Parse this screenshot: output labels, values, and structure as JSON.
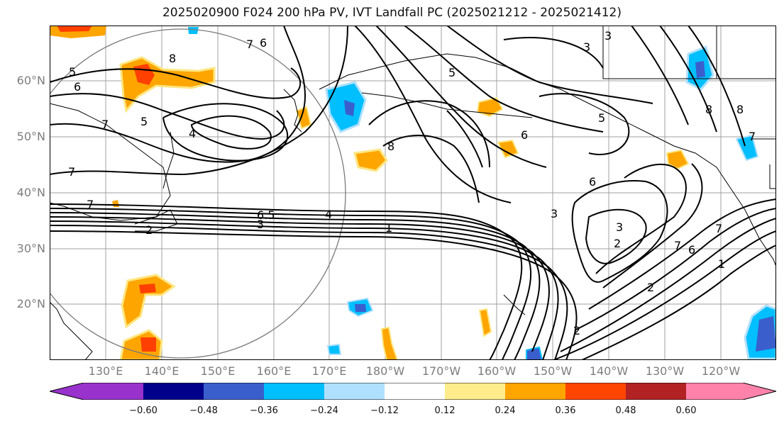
{
  "title": "2025020900 F024 200 hPa PV, IVT Landfall PC (2025021212 - 2025021412)",
  "map": {
    "lat_labels": [
      "60°N",
      "50°N",
      "40°N",
      "30°N",
      "20°N"
    ],
    "lon_labels": [
      "130°E",
      "140°E",
      "150°E",
      "160°E",
      "170°E",
      "180°W",
      "170°W",
      "160°W",
      "150°W",
      "140°W",
      "130°W",
      "120°W"
    ],
    "contour_labels": [
      "5",
      "6",
      "7",
      "8",
      "6",
      "7",
      "5",
      "4",
      "7",
      "7",
      "8",
      "6.5",
      "4",
      "3",
      "2",
      "1",
      "3",
      "5",
      "8",
      "3",
      "6",
      "5",
      "3",
      "6",
      "3",
      "2",
      "2",
      "7",
      "6",
      "7",
      "1",
      "2",
      "8",
      "7"
    ],
    "fill_colors": {
      "orange": "#ffa500",
      "light_orange": "#ffe680",
      "red_orange": "#ff4000",
      "cyan": "#00bfff",
      "light_cyan": "#b0e0ff",
      "blue": "#3a5fcd"
    }
  },
  "colorbar": {
    "tick_labels": [
      "−0.60",
      "−0.48",
      "−0.36",
      "−0.24",
      "−0.12",
      "0.12",
      "0.24",
      "0.36",
      "0.48",
      "0.60"
    ],
    "colors": [
      "#9932cc",
      "#00008b",
      "#3a5fcd",
      "#00bfff",
      "#b0e0ff",
      "#ffffff",
      "#ffec8b",
      "#ffa500",
      "#ff4500",
      "#b22222",
      "#ff82ab"
    ]
  }
}
